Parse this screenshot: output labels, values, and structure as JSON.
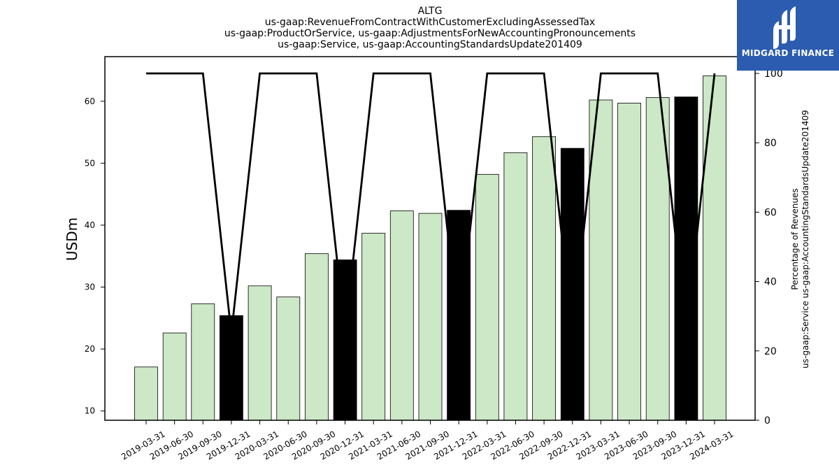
{
  "brand": {
    "name": "MIDGARD FINANCE",
    "logo_color": "#2b5cb0"
  },
  "chart_data": {
    "type": "bar",
    "title_lines": [
      "ALTG",
      "us-gaap:RevenueFromContractWithCustomerExcludingAssessedTax",
      "us-gaap:ProductOrService, us-gaap:AdjustmentsForNewAccountingPronouncements",
      "us-gaap:Service, us-gaap:AccountingStandardsUpdate201409"
    ],
    "ylabel": "USDm",
    "y2label_lines": [
      "Percentage of Revenues",
      "us-gaap:Service us-gaap:AccountingStandardsUpdate201409"
    ],
    "categories": [
      "2019-03-31",
      "2019-06-30",
      "2019-09-30",
      "2019-12-31",
      "2020-03-31",
      "2020-06-30",
      "2020-09-30",
      "2020-12-31",
      "2021-03-31",
      "2021-06-30",
      "2021-09-30",
      "2021-12-31",
      "2022-03-31",
      "2022-06-30",
      "2022-09-30",
      "2022-12-31",
      "2023-03-31",
      "2023-06-30",
      "2023-09-30",
      "2023-12-31",
      "2024-03-31"
    ],
    "values": [
      17.1,
      22.6,
      27.3,
      25.4,
      30.2,
      28.4,
      35.4,
      34.4,
      38.7,
      42.3,
      41.9,
      42.4,
      48.2,
      51.7,
      54.3,
      52.4,
      60.2,
      59.7,
      60.6,
      60.7,
      64.1
    ],
    "annual_flags": [
      false,
      false,
      false,
      true,
      false,
      false,
      false,
      true,
      false,
      false,
      false,
      true,
      false,
      false,
      false,
      true,
      false,
      false,
      false,
      true,
      false
    ],
    "percentage_line": [
      100,
      100,
      100,
      25,
      100,
      100,
      100,
      25,
      100,
      100,
      100,
      25,
      100,
      100,
      100,
      25,
      100,
      100,
      100,
      25,
      100
    ],
    "ylim": [
      8.5,
      67.2
    ],
    "yticks": [
      10,
      20,
      30,
      40,
      50,
      60
    ],
    "y2lim": [
      0,
      100
    ],
    "y2ticks": [
      0,
      20,
      40,
      60,
      80,
      100
    ],
    "colors": {
      "quarter_bar": "#cce8c6",
      "annual_bar": "#000000",
      "line": "#000000"
    }
  }
}
